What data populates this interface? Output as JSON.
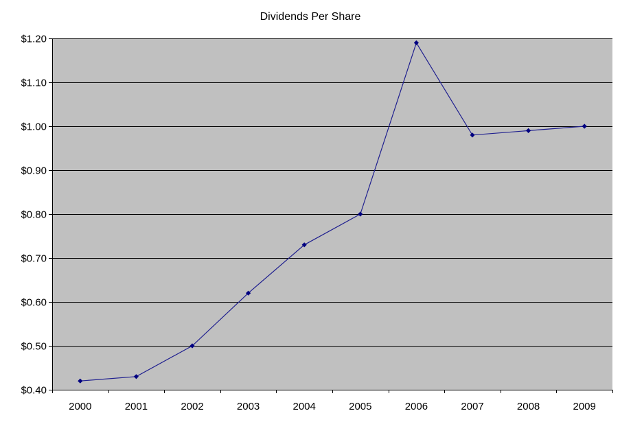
{
  "chart_data": {
    "type": "line",
    "title": "Dividends Per Share",
    "xlabel": "",
    "ylabel": "",
    "categories": [
      "2000",
      "2001",
      "2002",
      "2003",
      "2004",
      "2005",
      "2006",
      "2007",
      "2008",
      "2009"
    ],
    "series": [
      {
        "values": [
          0.42,
          0.43,
          0.5,
          0.62,
          0.73,
          0.8,
          1.19,
          0.98,
          0.99,
          1.0
        ],
        "color": "#1f1f8f",
        "marker": "diamond",
        "marker_color": "#000080"
      }
    ],
    "ylim": [
      0.4,
      1.2
    ],
    "y_ticks": [
      {
        "value": 0.4,
        "label": "$0.40"
      },
      {
        "value": 0.5,
        "label": "$0.50"
      },
      {
        "value": 0.6,
        "label": "$0.60"
      },
      {
        "value": 0.7,
        "label": "$0.70"
      },
      {
        "value": 0.8,
        "label": "$0.80"
      },
      {
        "value": 0.9,
        "label": "$0.90"
      },
      {
        "value": 1.0,
        "label": "$1.00"
      },
      {
        "value": 1.1,
        "label": "$1.10"
      },
      {
        "value": 1.2,
        "label": "$1.20"
      }
    ],
    "grid": true,
    "legend": "none",
    "plot_background": "#c0c0c0",
    "gridline_color": "#000000"
  }
}
